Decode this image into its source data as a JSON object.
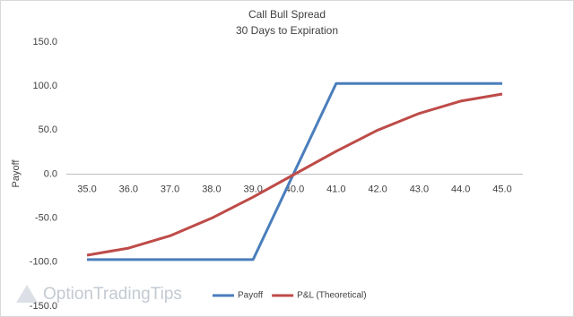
{
  "chart_data": {
    "type": "line",
    "title": "Call Bull Spread",
    "subtitle": "30 Days to Expiration",
    "y_label": "Payoff",
    "watermark": "OptionTradingTips",
    "categories": [
      "35.0",
      "36.0",
      "37.0",
      "38.0",
      "39.0",
      "40.0",
      "41.0",
      "42.0",
      "43.0",
      "44.0",
      "45.0"
    ],
    "series": [
      {
        "name": "Payoff",
        "color": "#4a7ebb",
        "values": [
          -97,
          -97,
          -97,
          -97,
          -97,
          3,
          103,
          103,
          103,
          103,
          103
        ]
      },
      {
        "name": "P&L (Theoretical)",
        "color": "#be4b48",
        "values": [
          -92,
          -84,
          -70,
          -50,
          -26,
          0,
          26,
          50,
          69,
          83,
          91
        ]
      }
    ],
    "ylim": [
      -150,
      150
    ],
    "yticks": [
      {
        "value": -150,
        "label": "-150.0"
      },
      {
        "value": -100,
        "label": "-100.0"
      },
      {
        "value": -50,
        "label": "-50.0"
      },
      {
        "value": 0,
        "label": "0.0"
      },
      {
        "value": 50,
        "label": "50.0"
      },
      {
        "value": 100,
        "label": "100.0"
      },
      {
        "value": 150,
        "label": "150.0"
      }
    ],
    "grid": false,
    "legend": "bottom"
  }
}
